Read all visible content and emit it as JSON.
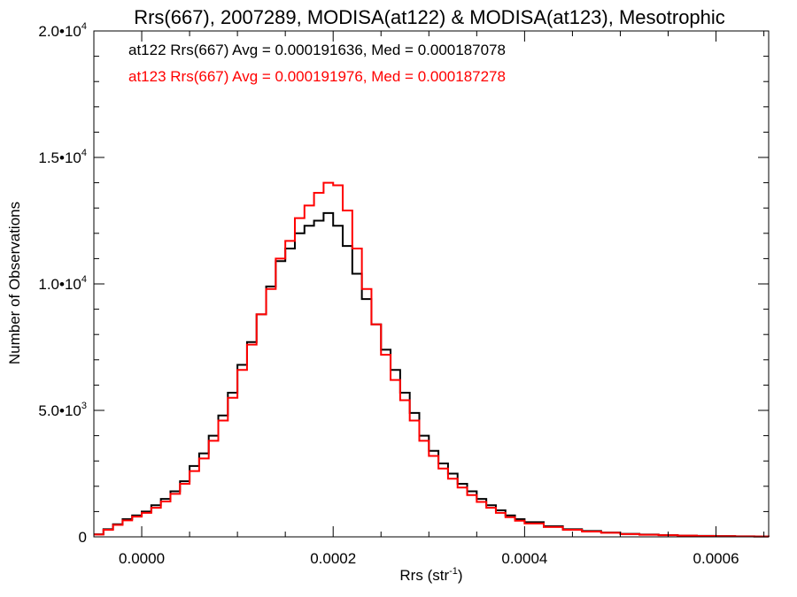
{
  "chart_data": {
    "type": "line",
    "title": "Rrs(667), 2007289, MODISA(at122) & MODISA(at123), Mesotrophic",
    "xlabel_main": "Rrs (str",
    "xlabel_sup": "-1",
    "xlabel_close": ")",
    "ylabel": "Number of Observations",
    "xlim": [
      -5e-05,
      0.000655
    ],
    "ylim": [
      0,
      20000
    ],
    "x_ticks": [
      {
        "value": 0.0,
        "label": "0.0000"
      },
      {
        "value": 0.0002,
        "label": "0.0002"
      },
      {
        "value": 0.0004,
        "label": "0.0004"
      },
      {
        "value": 0.0006,
        "label": "0.0006"
      }
    ],
    "x_minor_step": 5e-05,
    "y_ticks": [
      {
        "value": 0,
        "label": "0",
        "exp": ""
      },
      {
        "value": 5000,
        "label": "5.0•10",
        "exp": "3"
      },
      {
        "value": 10000,
        "label": "1.0•10",
        "exp": "4"
      },
      {
        "value": 15000,
        "label": "1.5•10",
        "exp": "4"
      },
      {
        "value": 20000,
        "label": "2.0•10",
        "exp": "4"
      }
    ],
    "y_minor_step": 1000,
    "grid": false,
    "annotations": [
      {
        "text": "at122 Rrs(667) Avg = 0.000191636, Med = 0.000187078",
        "color": "#000000"
      },
      {
        "text": "at123 Rrs(667) Avg = 0.000191976, Med = 0.000187278",
        "color": "#ff0000"
      }
    ],
    "series": [
      {
        "color": "#000000",
        "x": [
          -5e-05,
          -4e-05,
          -3e-05,
          -2e-05,
          -1e-05,
          0.0,
          1e-05,
          2e-05,
          3e-05,
          4e-05,
          5e-05,
          6e-05,
          7e-05,
          8e-05,
          9e-05,
          0.0001,
          0.00011,
          0.00012,
          0.00013,
          0.00014,
          0.00015,
          0.00016,
          0.00017,
          0.00018,
          0.00019,
          0.0002,
          0.00021,
          0.00022,
          0.00023,
          0.00024,
          0.00025,
          0.00026,
          0.00027,
          0.00028,
          0.00029,
          0.0003,
          0.00031,
          0.00032,
          0.00033,
          0.00034,
          0.00035,
          0.00036,
          0.00037,
          0.00038,
          0.00039,
          0.0004,
          0.00042,
          0.00044,
          0.00046,
          0.00048,
          0.0005,
          0.00052,
          0.00054,
          0.00056,
          0.00058,
          0.0006,
          0.00062,
          0.00064,
          0.000655
        ],
        "y": [
          100,
          300,
          500,
          700,
          850,
          1000,
          1250,
          1500,
          1800,
          2200,
          2800,
          3300,
          4000,
          4800,
          5700,
          6800,
          7700,
          8800,
          9900,
          10900,
          11400,
          12000,
          12300,
          12500,
          12800,
          12300,
          11500,
          10400,
          9400,
          8400,
          7400,
          6600,
          5700,
          4900,
          4000,
          3400,
          2900,
          2500,
          2100,
          1800,
          1500,
          1250,
          1050,
          850,
          700,
          580,
          420,
          300,
          230,
          170,
          120,
          90,
          70,
          50,
          40,
          30,
          20,
          15,
          10
        ]
      },
      {
        "color": "#ff0000",
        "x": [
          -5e-05,
          -4e-05,
          -3e-05,
          -2e-05,
          -1e-05,
          0.0,
          1e-05,
          2e-05,
          3e-05,
          4e-05,
          5e-05,
          6e-05,
          7e-05,
          8e-05,
          9e-05,
          0.0001,
          0.00011,
          0.00012,
          0.00013,
          0.00014,
          0.00015,
          0.00016,
          0.00017,
          0.00018,
          0.00019,
          0.0002,
          0.00021,
          0.00022,
          0.00023,
          0.00024,
          0.00025,
          0.00026,
          0.00027,
          0.00028,
          0.00029,
          0.0003,
          0.00031,
          0.00032,
          0.00033,
          0.00034,
          0.00035,
          0.00036,
          0.00037,
          0.00038,
          0.00039,
          0.0004,
          0.00042,
          0.00044,
          0.00046,
          0.00048,
          0.0005,
          0.00052,
          0.00054,
          0.00056,
          0.00058,
          0.0006,
          0.00062,
          0.00064,
          0.000655
        ],
        "y": [
          90,
          280,
          470,
          650,
          800,
          950,
          1150,
          1400,
          1700,
          2100,
          2600,
          3100,
          3800,
          4600,
          5500,
          6600,
          7600,
          8800,
          9800,
          11000,
          11700,
          12600,
          13100,
          13600,
          14000,
          13900,
          12900,
          11400,
          9800,
          8400,
          7200,
          6200,
          5400,
          4600,
          3800,
          3200,
          2700,
          2300,
          1950,
          1650,
          1380,
          1150,
          950,
          780,
          640,
          530,
          390,
          280,
          210,
          160,
          110,
          85,
          65,
          48,
          36,
          27,
          19,
          14,
          9
        ]
      }
    ]
  }
}
